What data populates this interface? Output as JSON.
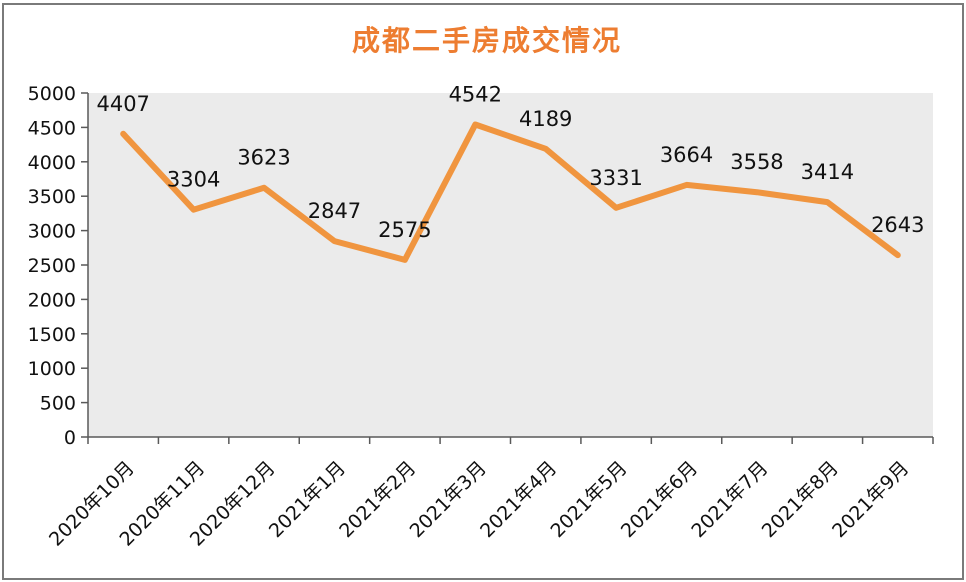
{
  "chart_data": {
    "type": "line",
    "title": "成都二手房成交情况",
    "categories": [
      "2020年10月",
      "2020年11月",
      "2020年12月",
      "2021年1月",
      "2021年2月",
      "2021年3月",
      "2021年4月",
      "2021年5月",
      "2021年6月",
      "2021年7月",
      "2021年8月",
      "2021年9月"
    ],
    "values": [
      4407,
      3304,
      3623,
      2847,
      2575,
      4542,
      4189,
      3331,
      3664,
      3558,
      3414,
      2643
    ],
    "xlabel": "",
    "ylabel": "",
    "ylim": [
      0,
      5000
    ],
    "y_ticks": [
      0,
      500,
      1000,
      1500,
      2000,
      2500,
      3000,
      3500,
      4000,
      4500,
      5000
    ],
    "grid": false,
    "legend_position": "none",
    "data_labels": true,
    "x_label_rotation_deg": -45,
    "colors": {
      "line": "#F0953F",
      "title": "#ED7D31",
      "plot_background": "#EBEBEB",
      "axis": "#595959",
      "label_text": "#111111",
      "frame_border": "#7A7A7A"
    }
  }
}
